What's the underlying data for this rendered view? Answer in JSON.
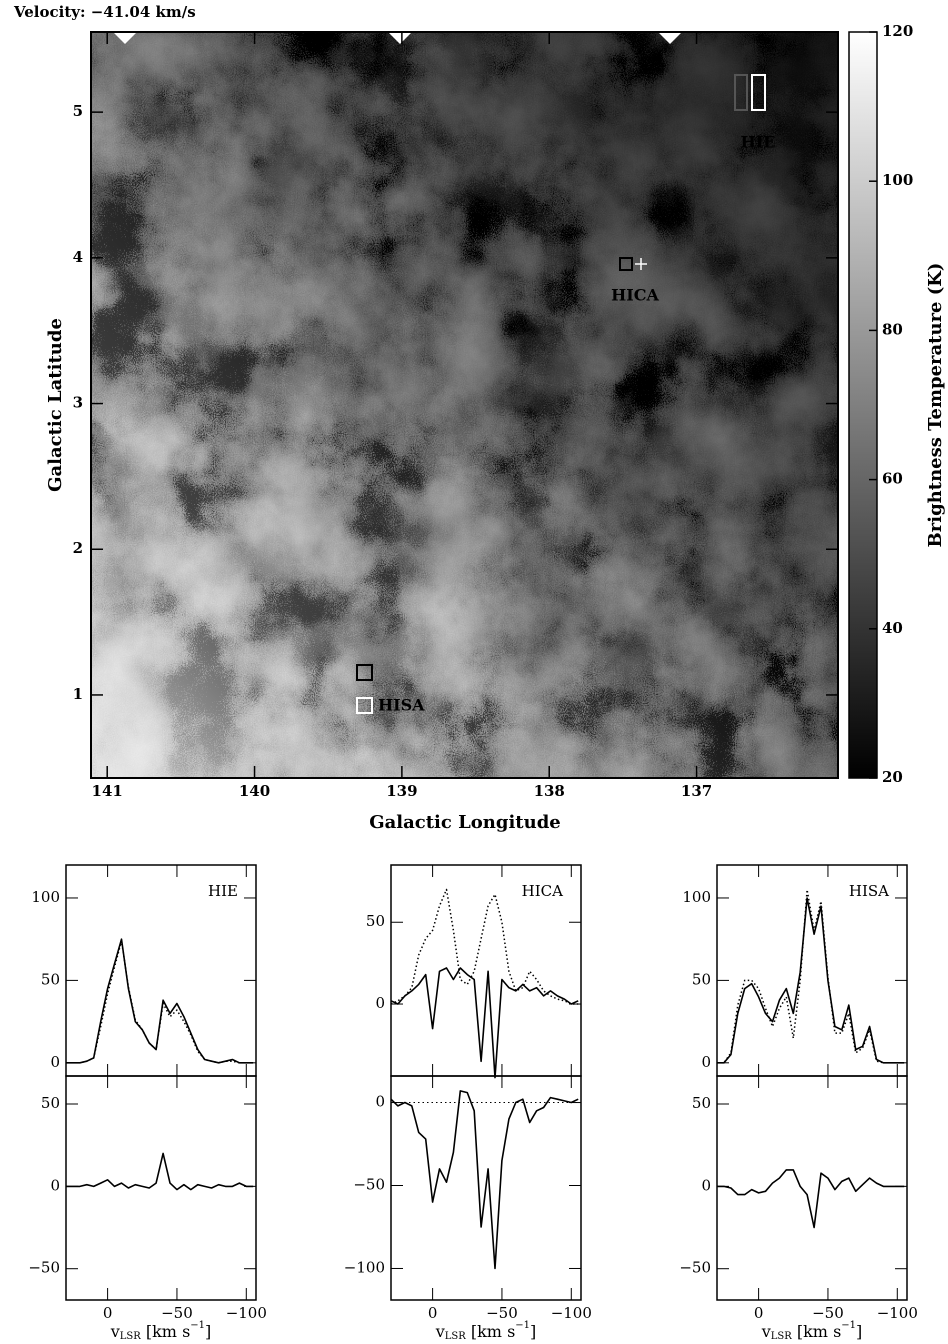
{
  "chart_data": [
    {
      "type": "image",
      "title": "Velocity: −41.04 km/s",
      "x_label": "Galactic Longitude",
      "y_label": "Galactic Latitude",
      "xlim": [
        141.11,
        136.04
      ],
      "ylim": [
        0.43,
        5.55
      ],
      "xticks": [
        141,
        140,
        139,
        138,
        137
      ],
      "yticks": [
        1,
        2,
        3,
        4,
        5
      ],
      "colorbar": {
        "label": "Brightness Temperature (K)",
        "lim": [
          20,
          120
        ],
        "ticks": [
          20,
          40,
          60,
          80,
          100,
          120
        ]
      },
      "annotations": [
        "HIE",
        "HICA",
        "HISA"
      ]
    },
    {
      "type": "line",
      "label": "HIE",
      "xlim": [
        30,
        -107
      ],
      "ylim": [
        -8,
        120
      ],
      "xticks": [
        0,
        -50,
        -100
      ],
      "yticks": [
        0,
        50,
        100
      ],
      "x": [
        30,
        25,
        20,
        15,
        10,
        5,
        0,
        -5,
        -10,
        -15,
        -20,
        -25,
        -30,
        -35,
        -40,
        -45,
        -50,
        -55,
        -60,
        -65,
        -70,
        -75,
        -80,
        -85,
        -90,
        -95,
        -100,
        -105
      ],
      "series": [
        {
          "style": "solid",
          "color": "#000000",
          "values": [
            0,
            0,
            0,
            1,
            3,
            25,
            45,
            60,
            75,
            45,
            25,
            20,
            12,
            8,
            38,
            30,
            36,
            28,
            18,
            8,
            2,
            1,
            0,
            1,
            2,
            0,
            0,
            0
          ]
        },
        {
          "style": "dotted",
          "color": "#000000",
          "values": [
            0,
            0,
            0,
            1,
            3,
            22,
            42,
            58,
            74,
            46,
            26,
            20,
            12,
            8,
            36,
            28,
            32,
            25,
            17,
            7,
            2,
            1,
            0,
            1,
            1,
            0,
            0,
            0
          ]
        }
      ]
    },
    {
      "type": "line",
      "xlim": [
        30,
        -107
      ],
      "ylim": [
        -69,
        67
      ],
      "xticks": [
        0,
        {
          "value": -50,
          "label": "−50"
        },
        {
          "value": -100,
          "label": "−100"
        }
      ],
      "yticks": [
        {
          "value": -50,
          "label": "−50"
        },
        0,
        50
      ],
      "x_label": [
        "v",
        "LSR",
        " [km s",
        "−1",
        "]"
      ],
      "x": [
        30,
        25,
        20,
        15,
        10,
        5,
        0,
        -5,
        -10,
        -15,
        -20,
        -25,
        -30,
        -35,
        -40,
        -45,
        -50,
        -55,
        -60,
        -65,
        -70,
        -75,
        -80,
        -85,
        -90,
        -95,
        -100,
        -105
      ],
      "series": [
        {
          "style": "solid",
          "color": "#000000",
          "values": [
            0,
            0,
            0,
            1,
            0,
            2,
            4,
            0,
            2,
            -1,
            1,
            0,
            -1,
            2,
            20,
            2,
            -2,
            1,
            -2,
            1,
            0,
            -1,
            1,
            0,
            0,
            2,
            0,
            0
          ]
        }
      ]
    },
    {
      "type": "line",
      "label": "HICA",
      "xlim": [
        30,
        -107
      ],
      "ylim": [
        -44,
        85
      ],
      "xticks": [
        0,
        -50,
        -100
      ],
      "yticks": [
        0,
        50
      ],
      "x": [
        30,
        25,
        20,
        15,
        10,
        5,
        0,
        -5,
        -10,
        -15,
        -20,
        -25,
        -30,
        -35,
        -40,
        -45,
        -50,
        -55,
        -60,
        -65,
        -70,
        -75,
        -80,
        -85,
        -90,
        -95,
        -100,
        -105
      ],
      "series": [
        {
          "style": "solid",
          "color": "#000000",
          "values": [
            2,
            0,
            5,
            8,
            12,
            18,
            -15,
            20,
            22,
            15,
            22,
            18,
            15,
            -35,
            20,
            -45,
            15,
            10,
            8,
            12,
            8,
            10,
            5,
            8,
            5,
            3,
            0,
            2
          ]
        },
        {
          "style": "dotted",
          "color": "#000000",
          "values": [
            0,
            2,
            5,
            10,
            30,
            40,
            45,
            60,
            70,
            45,
            15,
            12,
            20,
            40,
            60,
            67,
            50,
            20,
            8,
            10,
            20,
            15,
            8,
            5,
            3,
            2,
            0,
            0
          ]
        }
      ]
    },
    {
      "type": "line",
      "xlim": [
        30,
        -107
      ],
      "ylim": [
        -119,
        16
      ],
      "zero_line": true,
      "xticks": [
        0,
        {
          "value": -50,
          "label": "−50"
        },
        {
          "value": -100,
          "label": "−100"
        }
      ],
      "yticks": [
        {
          "value": -100,
          "label": "−100"
        },
        {
          "value": -50,
          "label": "−50"
        },
        0
      ],
      "x_label": [
        "v",
        "LSR",
        " [km s",
        "−1",
        "]"
      ],
      "x": [
        30,
        25,
        20,
        15,
        10,
        5,
        0,
        -5,
        -10,
        -15,
        -20,
        -25,
        -30,
        -35,
        -40,
        -45,
        -50,
        -55,
        -60,
        -65,
        -70,
        -75,
        -80,
        -85,
        -90,
        -95,
        -100,
        -105
      ],
      "series": [
        {
          "style": "solid",
          "color": "#000000",
          "values": [
            2,
            -2,
            0,
            -2,
            -18,
            -22,
            -60,
            -40,
            -48,
            -30,
            7,
            6,
            -5,
            -75,
            -40,
            -100,
            -35,
            -10,
            0,
            2,
            -12,
            -5,
            -3,
            3,
            2,
            1,
            0,
            2
          ]
        }
      ]
    },
    {
      "type": "line",
      "label": "HISA",
      "xlim": [
        30,
        -107
      ],
      "ylim": [
        -8,
        120
      ],
      "xticks": [
        0,
        -50,
        -100
      ],
      "yticks": [
        0,
        50,
        100
      ],
      "x": [
        30,
        25,
        20,
        15,
        10,
        5,
        0,
        -5,
        -10,
        -15,
        -20,
        -25,
        -30,
        -35,
        -40,
        -45,
        -50,
        -55,
        -60,
        -65,
        -70,
        -75,
        -80,
        -85,
        -90,
        -95,
        -100,
        -105
      ],
      "series": [
        {
          "style": "solid",
          "color": "#000000",
          "values": [
            0,
            0,
            5,
            30,
            45,
            48,
            40,
            30,
            25,
            38,
            45,
            30,
            55,
            100,
            78,
            95,
            50,
            22,
            20,
            35,
            8,
            10,
            22,
            2,
            0,
            0,
            0,
            0
          ]
        },
        {
          "style": "dotted",
          "color": "#000000",
          "values": [
            0,
            0,
            6,
            35,
            50,
            50,
            45,
            33,
            22,
            33,
            40,
            15,
            50,
            105,
            80,
            98,
            52,
            18,
            18,
            30,
            6,
            9,
            20,
            1,
            0,
            0,
            0,
            0
          ]
        }
      ]
    },
    {
      "type": "line",
      "xlim": [
        30,
        -107
      ],
      "ylim": [
        -69,
        67
      ],
      "xticks": [
        0,
        {
          "value": -50,
          "label": "−50"
        },
        {
          "value": -100,
          "label": "−100"
        }
      ],
      "yticks": [
        {
          "value": -50,
          "label": "−50"
        },
        0,
        50
      ],
      "x_label": [
        "v",
        "LSR",
        " [km s",
        "−1",
        "]"
      ],
      "x": [
        30,
        25,
        20,
        15,
        10,
        5,
        0,
        -5,
        -10,
        -15,
        -20,
        -25,
        -30,
        -35,
        -40,
        -45,
        -50,
        -55,
        -60,
        -65,
        -70,
        -75,
        -80,
        -85,
        -90,
        -95,
        -100,
        -105
      ],
      "series": [
        {
          "style": "solid",
          "color": "#000000",
          "values": [
            0,
            0,
            -1,
            -5,
            -5,
            -2,
            -4,
            -3,
            2,
            5,
            10,
            10,
            0,
            -5,
            -25,
            8,
            5,
            -2,
            3,
            5,
            -3,
            1,
            5,
            2,
            0,
            0,
            0,
            0
          ]
        }
      ]
    }
  ]
}
